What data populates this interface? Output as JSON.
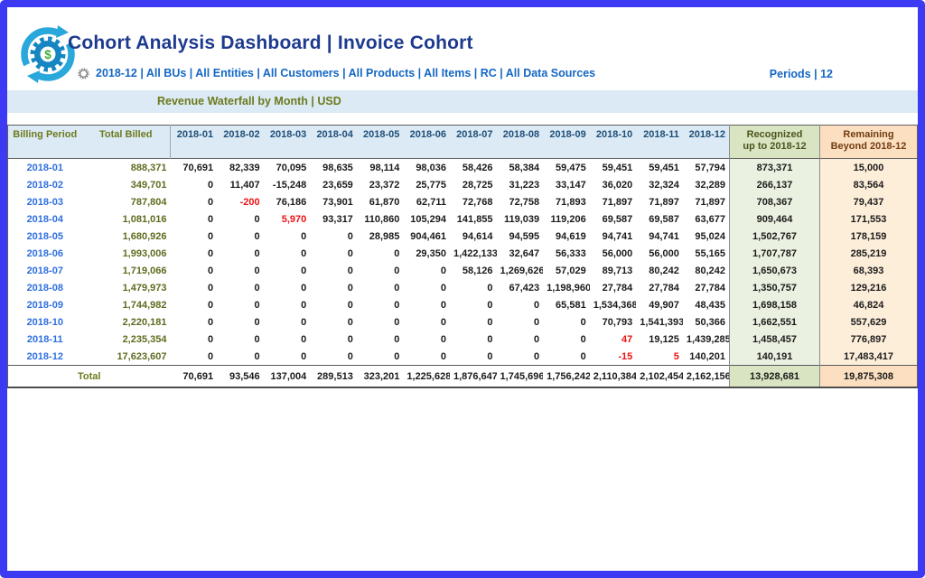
{
  "header": {
    "title": "Cohort Analysis Dashboard | Invoice Cohort",
    "filter_summary": "2018-12 | All BUs | All Entities | All Customers | All Products | All Items | RC | All Data Sources",
    "periods_label": "Periods | 12"
  },
  "section": {
    "title": "Revenue Waterfall by Month | USD"
  },
  "table": {
    "columns": {
      "billing_period": "Billing Period",
      "total_billed": "Total Billed",
      "months": [
        "2018-01",
        "2018-02",
        "2018-03",
        "2018-04",
        "2018-05",
        "2018-06",
        "2018-07",
        "2018-08",
        "2018-09",
        "2018-10",
        "2018-11",
        "2018-12"
      ],
      "recognized_line1": "Recognized",
      "recognized_line2": "up to 2018-12",
      "remaining_line1": "Remaining",
      "remaining_line2": "Beyond 2018-12"
    },
    "rows": [
      {
        "period": "2018-01",
        "total_billed": "888,371",
        "months": [
          "70,691",
          "82,339",
          "70,095",
          "98,635",
          "98,114",
          "98,036",
          "58,426",
          "58,384",
          "59,475",
          "59,451",
          "59,451",
          "57,794"
        ],
        "red": [],
        "recognized": "873,371",
        "remaining": "15,000"
      },
      {
        "period": "2018-02",
        "total_billed": "349,701",
        "months": [
          "0",
          "11,407",
          "-15,248",
          "23,659",
          "23,372",
          "25,775",
          "28,725",
          "31,223",
          "33,147",
          "36,020",
          "32,324",
          "32,289"
        ],
        "red": [],
        "recognized": "266,137",
        "remaining": "83,564"
      },
      {
        "period": "2018-03",
        "total_billed": "787,804",
        "months": [
          "0",
          "-200",
          "76,186",
          "73,901",
          "61,870",
          "62,711",
          "72,768",
          "72,758",
          "71,893",
          "71,897",
          "71,897",
          "71,897"
        ],
        "red": [
          1
        ],
        "recognized": "708,367",
        "remaining": "79,437"
      },
      {
        "period": "2018-04",
        "total_billed": "1,081,016",
        "months": [
          "0",
          "0",
          "5,970",
          "93,317",
          "110,860",
          "105,294",
          "141,855",
          "119,039",
          "119,206",
          "69,587",
          "69,587",
          "63,677"
        ],
        "red": [
          2
        ],
        "recognized": "909,464",
        "remaining": "171,553"
      },
      {
        "period": "2018-05",
        "total_billed": "1,680,926",
        "months": [
          "0",
          "0",
          "0",
          "0",
          "28,985",
          "904,461",
          "94,614",
          "94,595",
          "94,619",
          "94,741",
          "94,741",
          "95,024"
        ],
        "red": [],
        "recognized": "1,502,767",
        "remaining": "178,159"
      },
      {
        "period": "2018-06",
        "total_billed": "1,993,006",
        "months": [
          "0",
          "0",
          "0",
          "0",
          "0",
          "29,350",
          "1,422,133",
          "32,647",
          "56,333",
          "56,000",
          "56,000",
          "55,165"
        ],
        "red": [],
        "recognized": "1,707,787",
        "remaining": "285,219"
      },
      {
        "period": "2018-07",
        "total_billed": "1,719,066",
        "months": [
          "0",
          "0",
          "0",
          "0",
          "0",
          "0",
          "58,126",
          "1,269,626",
          "57,029",
          "89,713",
          "80,242",
          "80,242"
        ],
        "red": [],
        "recognized": "1,650,673",
        "remaining": "68,393"
      },
      {
        "period": "2018-08",
        "total_billed": "1,479,973",
        "months": [
          "0",
          "0",
          "0",
          "0",
          "0",
          "0",
          "0",
          "67,423",
          "1,198,960",
          "27,784",
          "27,784",
          "27,784"
        ],
        "red": [],
        "recognized": "1,350,757",
        "remaining": "129,216"
      },
      {
        "period": "2018-09",
        "total_billed": "1,744,982",
        "months": [
          "0",
          "0",
          "0",
          "0",
          "0",
          "0",
          "0",
          "0",
          "65,581",
          "1,534,368",
          "49,907",
          "48,435"
        ],
        "red": [],
        "recognized": "1,698,158",
        "remaining": "46,824"
      },
      {
        "period": "2018-10",
        "total_billed": "2,220,181",
        "months": [
          "0",
          "0",
          "0",
          "0",
          "0",
          "0",
          "0",
          "0",
          "0",
          "70,793",
          "1,541,393",
          "50,366"
        ],
        "red": [],
        "recognized": "1,662,551",
        "remaining": "557,629"
      },
      {
        "period": "2018-11",
        "total_billed": "2,235,354",
        "months": [
          "0",
          "0",
          "0",
          "0",
          "0",
          "0",
          "0",
          "0",
          "0",
          "47",
          "19,125",
          "1,439,285"
        ],
        "red": [
          9
        ],
        "recognized": "1,458,457",
        "remaining": "776,897"
      },
      {
        "period": "2018-12",
        "total_billed": "17,623,607",
        "months": [
          "0",
          "0",
          "0",
          "0",
          "0",
          "0",
          "0",
          "0",
          "0",
          "-15",
          "5",
          "140,201"
        ],
        "red": [
          9,
          10
        ],
        "recognized": "140,191",
        "remaining": "17,483,417"
      }
    ],
    "total": {
      "label": "Total",
      "months": [
        "70,691",
        "93,546",
        "137,004",
        "289,513",
        "323,201",
        "1,225,628",
        "1,876,647",
        "1,745,696",
        "1,756,242",
        "2,110,384",
        "2,102,454",
        "2,162,156"
      ],
      "recognized": "13,928,681",
      "remaining": "19,875,308"
    }
  },
  "colors": {
    "frame_border": "#3c3af2",
    "title_text": "#1d3a8e",
    "filter_text": "#1467c4",
    "section_bar_bg": "#dbeaf4",
    "olive_text": "#6e7a1e",
    "month_header_text": "#1f4e79",
    "period_link_blue": "#2e6fe0",
    "negative_red": "#ed1111",
    "recognized_header_bg": "#d8e4c2",
    "remaining_header_bg": "#fcdfc0",
    "recognized_cell_bg": "#eaf1e0",
    "remaining_cell_bg": "#fdeeda"
  }
}
